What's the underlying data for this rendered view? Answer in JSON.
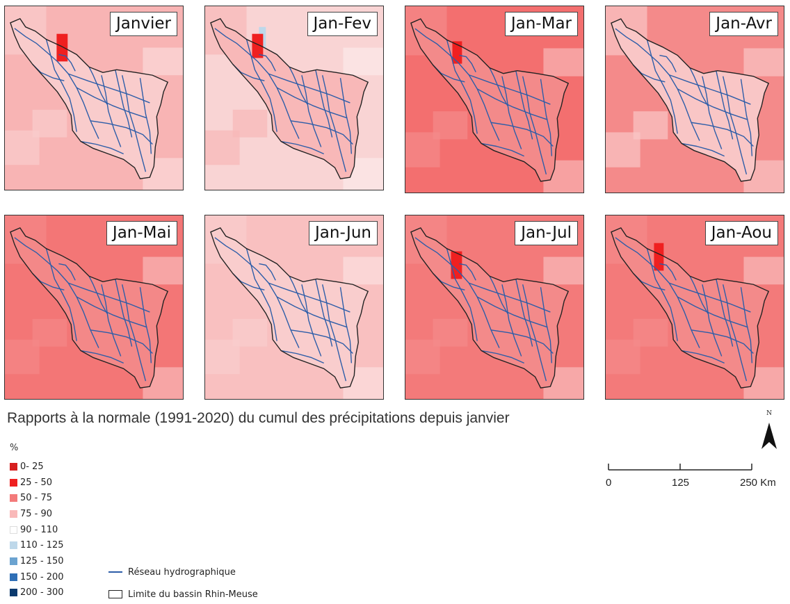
{
  "panels": [
    {
      "title": "Janvier",
      "outside": "#f8b4b4",
      "inside": "#f9cccc",
      "cool_patches": [],
      "dark_patches": [
        [
          75,
          40,
          16,
          40
        ]
      ]
    },
    {
      "title": "Jan-Fev",
      "outside": "#f9d4d4",
      "inside": "#f8b8b8",
      "cool_patches": [
        [
          78,
          30,
          10,
          30
        ]
      ],
      "dark_patches": [
        [
          68,
          40,
          16,
          35
        ]
      ]
    },
    {
      "title": "Jan-Mar",
      "outside": "#f36f6f",
      "inside": "#f38a8a",
      "cool_patches": [],
      "dark_patches": [
        [
          68,
          50,
          14,
          32
        ]
      ]
    },
    {
      "title": "Jan-Avr",
      "outside": "#f48a8a",
      "inside": "#f9c6c6",
      "cool_patches": [],
      "dark_patches": []
    },
    {
      "title": "Jan-Mai",
      "outside": "#f37676",
      "inside": "#f38888",
      "cool_patches": [],
      "dark_patches": []
    },
    {
      "title": "Jan-Jun",
      "outside": "#f9c0c0",
      "inside": "#f9cdcd",
      "cool_patches": [],
      "dark_patches": []
    },
    {
      "title": "Jan-Jul",
      "outside": "#f37a7a",
      "inside": "#f38a8a",
      "cool_patches": [],
      "dark_patches": [
        [
          66,
          52,
          16,
          40
        ]
      ]
    },
    {
      "title": "Jan-Aou",
      "outside": "#f37a7a",
      "inside": "#f38a8a",
      "cool_patches": [],
      "dark_patches": [
        [
          70,
          40,
          14,
          40
        ]
      ]
    }
  ],
  "title": "Rapports à la normale (1991-2020) du cumul des précipitations depuis janvier",
  "legend": {
    "unit": "%",
    "classes": [
      {
        "label": "0- 25",
        "color": "#d61f1f"
      },
      {
        "label": "25 - 50",
        "color": "#ef2020"
      },
      {
        "label": "50 - 75",
        "color": "#f37a7a"
      },
      {
        "label": "75 - 90",
        "color": "#f9b9b9"
      },
      {
        "label": "90 - 110",
        "color": "#ffffff"
      },
      {
        "label": "110 - 125",
        "color": "#bed8ea"
      },
      {
        "label": "125 - 150",
        "color": "#6ba3d0"
      },
      {
        "label": "150 - 200",
        "color": "#2f6fb6"
      },
      {
        "label": "200 - 300",
        "color": "#0b3a6e"
      }
    ],
    "river_label": "Réseau hydrographique",
    "basin_label": "Limite du bassin Rhin-Meuse",
    "river_color": "#2d5da8"
  },
  "north_label": "N",
  "scale": {
    "labels": [
      "0",
      "125",
      "250 Km"
    ]
  }
}
